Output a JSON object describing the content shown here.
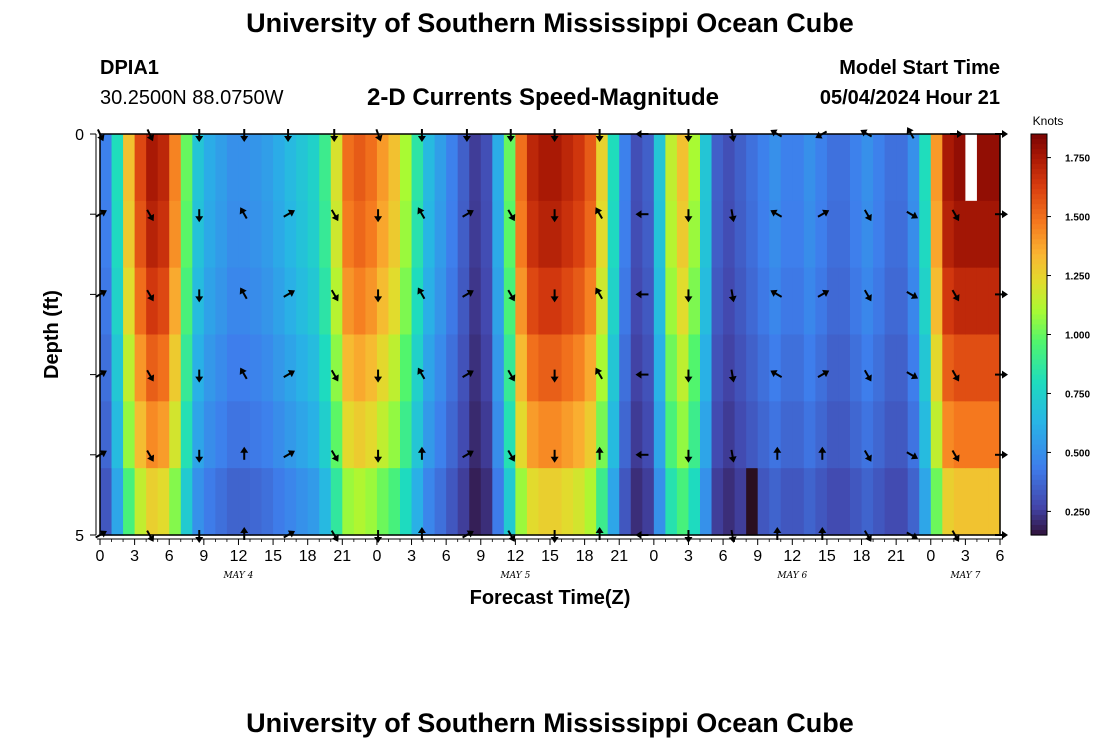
{
  "header": {
    "title": "University of Southern Mississippi Ocean Cube",
    "station": "DPIA1",
    "coords": "30.2500N  88.0750W",
    "subtitle": "2-D Currents Speed-Magnitude",
    "start_label": "Model Start Time",
    "start_value": "05/04/2024 Hour 21"
  },
  "footer": {
    "title": "University of Southern Mississippi Ocean Cube"
  },
  "chart_data": {
    "type": "heatmap",
    "title": "2-D Currents Speed-Magnitude",
    "xlabel": "Forecast Time(Z)",
    "ylabel": "Depth (ft)",
    "units": "Knots",
    "xlim": [
      0,
      78
    ],
    "ylim": [
      0,
      5
    ],
    "x_tick_labels": [
      "0",
      "3",
      "6",
      "9",
      "12",
      "15",
      "18",
      "21",
      "0",
      "3",
      "6",
      "9",
      "12",
      "15",
      "18",
      "21",
      "0",
      "3",
      "6",
      "9",
      "12",
      "15",
      "18",
      "21",
      "0",
      "3",
      "6"
    ],
    "y_tick_labels": [
      "0",
      "5"
    ],
    "date_labels": [
      {
        "label": "MAY 4",
        "hour": 12
      },
      {
        "label": "MAY 5",
        "hour": 36
      },
      {
        "label": "MAY 6",
        "hour": 60
      },
      {
        "label": "MAY 7",
        "hour": 75
      }
    ],
    "colorbar": {
      "min": 0.15,
      "max": 1.85,
      "ticks": [
        "0.250",
        "0.500",
        "0.750",
        "1.000",
        "1.250",
        "1.500",
        "1.750"
      ]
    },
    "hours": [
      0,
      1,
      2,
      3,
      4,
      5,
      6,
      7,
      8,
      9,
      10,
      11,
      12,
      13,
      14,
      15,
      16,
      17,
      18,
      19,
      20,
      21,
      22,
      23,
      24,
      25,
      26,
      27,
      28,
      29,
      30,
      31,
      32,
      33,
      34,
      35,
      36,
      37,
      38,
      39,
      40,
      41,
      42,
      43,
      44,
      45,
      46,
      47,
      48,
      49,
      50,
      51,
      52,
      53,
      54,
      55,
      56,
      57,
      58,
      59,
      60,
      61,
      62,
      63,
      64,
      65,
      66,
      67,
      68,
      69,
      70,
      71,
      72,
      73,
      74,
      75,
      76,
      77
    ],
    "speed_surface": [
      0.45,
      0.8,
      1.3,
      1.6,
      1.75,
      1.7,
      1.45,
      1.0,
      0.7,
      0.6,
      0.55,
      0.5,
      0.5,
      0.52,
      0.55,
      0.6,
      0.65,
      0.7,
      0.75,
      0.9,
      1.2,
      1.5,
      1.55,
      1.5,
      1.4,
      1.3,
      1.1,
      0.85,
      0.65,
      0.55,
      0.45,
      0.35,
      0.25,
      0.3,
      0.6,
      1.0,
      1.5,
      1.7,
      1.75,
      1.75,
      1.7,
      1.65,
      1.55,
      1.25,
      0.8,
      0.45,
      0.3,
      0.35,
      0.7,
      1.15,
      1.3,
      1.1,
      0.7,
      0.35,
      0.3,
      0.35,
      0.4,
      0.45,
      0.5,
      0.45,
      0.45,
      0.5,
      0.45,
      0.4,
      0.4,
      0.45,
      0.5,
      0.45,
      0.4,
      0.4,
      0.5,
      0.8,
      1.4,
      1.75,
      1.8,
      1.8,
      1.8,
      1.8
    ],
    "depth_factors": [
      1.0,
      0.98,
      0.94,
      0.88,
      0.82,
      0.72
    ],
    "anomalies": [
      {
        "hour": 56,
        "depth_row": 5,
        "speed": 1.85
      },
      {
        "hour": 75,
        "depth_row": 0,
        "speed": null
      }
    ],
    "arrow_depths": [
      0,
      1,
      2,
      3,
      4,
      5
    ],
    "arrow_hours": [
      0,
      4.3,
      8.6,
      12.5,
      16.3,
      20.3,
      24.1,
      27.9,
      31.8,
      35.6,
      39.4,
      43.3,
      47.1,
      51.0,
      54.8,
      58.7,
      62.6,
      66.5,
      70.3,
      74.1,
      78
    ],
    "arrow_directions_deg": [
      [
        155,
        155,
        180,
        180,
        180,
        180,
        160,
        180,
        180,
        180,
        180,
        180,
        270,
        180,
        170,
        300,
        240,
        300,
        330,
        90,
        90
      ],
      [
        60,
        150,
        180,
        330,
        60,
        150,
        180,
        330,
        60,
        150,
        180,
        330,
        270,
        180,
        170,
        300,
        60,
        150,
        120,
        150,
        90
      ],
      [
        60,
        150,
        180,
        330,
        60,
        150,
        180,
        330,
        60,
        150,
        180,
        330,
        270,
        180,
        170,
        300,
        60,
        150,
        120,
        150,
        90
      ],
      [
        60,
        150,
        180,
        330,
        60,
        150,
        180,
        330,
        60,
        150,
        180,
        330,
        270,
        180,
        170,
        300,
        60,
        150,
        120,
        150,
        90
      ],
      [
        60,
        150,
        180,
        0,
        60,
        150,
        180,
        0,
        60,
        150,
        180,
        0,
        270,
        180,
        170,
        0,
        0,
        150,
        120,
        150,
        90
      ],
      [
        60,
        150,
        180,
        0,
        60,
        150,
        180,
        0,
        60,
        150,
        180,
        0,
        270,
        180,
        170,
        0,
        0,
        150,
        120,
        150,
        90
      ]
    ]
  },
  "svg_text": {
    "ylabel": "Depth (ft)",
    "xlabel": "Forecast Time(Z)",
    "units": "Knots"
  }
}
